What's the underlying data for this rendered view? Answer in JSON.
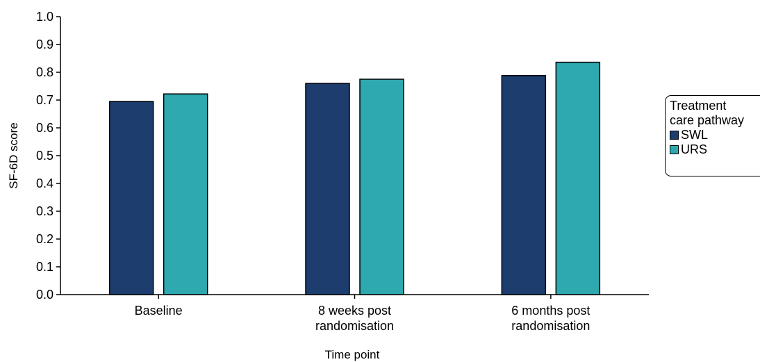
{
  "chart_data": {
    "type": "bar",
    "categories": [
      [
        "Baseline"
      ],
      [
        "8 weeks post",
        "randomisation"
      ],
      [
        "6 months post",
        "randomisation"
      ]
    ],
    "series": [
      {
        "name": "SWL",
        "color": "#1c3d6e",
        "values": [
          0.695,
          0.76,
          0.788
        ]
      },
      {
        "name": "URS",
        "color": "#2ea9b0",
        "values": [
          0.722,
          0.775,
          0.836
        ]
      }
    ],
    "xlabel": "Time point",
    "ylabel": "SF-6D score",
    "ylim": [
      0.0,
      1.0
    ],
    "yticks": [
      "0.0",
      "0.1",
      "0.2",
      "0.3",
      "0.4",
      "0.5",
      "0.6",
      "0.7",
      "0.8",
      "0.9",
      "1.0"
    ],
    "legend": {
      "title_lines": [
        "Treatment",
        "care pathway"
      ],
      "placement": "right"
    },
    "grid": false
  }
}
